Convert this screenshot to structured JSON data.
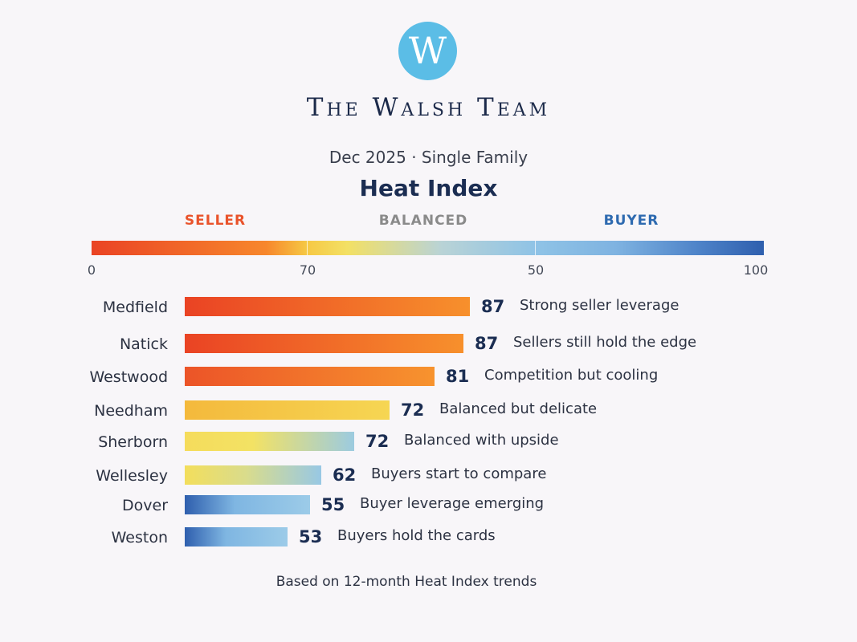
{
  "logo": {
    "letter": "W",
    "color": "#5bbde6"
  },
  "brand": "The Walsh Team",
  "subtitle": "Dec 2025 · Single Family",
  "footer": "Based on 12-month Heat Index trends",
  "colors": {
    "seller": "#e9532b",
    "balanced": "#8a8a8a",
    "buyer": "#2e6ab0",
    "value_text": "#1b2d52"
  },
  "chart_data": {
    "type": "bar",
    "orientation": "horizontal",
    "title": "Heat Index",
    "zones": [
      "SELLER",
      "BALANCED",
      "BUYER"
    ],
    "scale_ticks": [
      "0",
      "70",
      "50",
      "100"
    ],
    "categories": [
      "Medfield",
      "Natick",
      "Westwood",
      "Needham",
      "Sherborn",
      "Wellesley",
      "Dover",
      "Weston"
    ],
    "values": [
      87,
      87,
      81,
      72,
      72,
      62,
      55,
      53
    ],
    "descriptions": [
      "Strong seller leverage",
      "Sellers still hold the edge",
      "Competition but cooling",
      "Balanced but delicate",
      "Balanced with upside",
      "Buyers start to compare",
      "Buyer leverage emerging",
      "Buyers hold the cards"
    ],
    "xlim": [
      0,
      100
    ]
  }
}
